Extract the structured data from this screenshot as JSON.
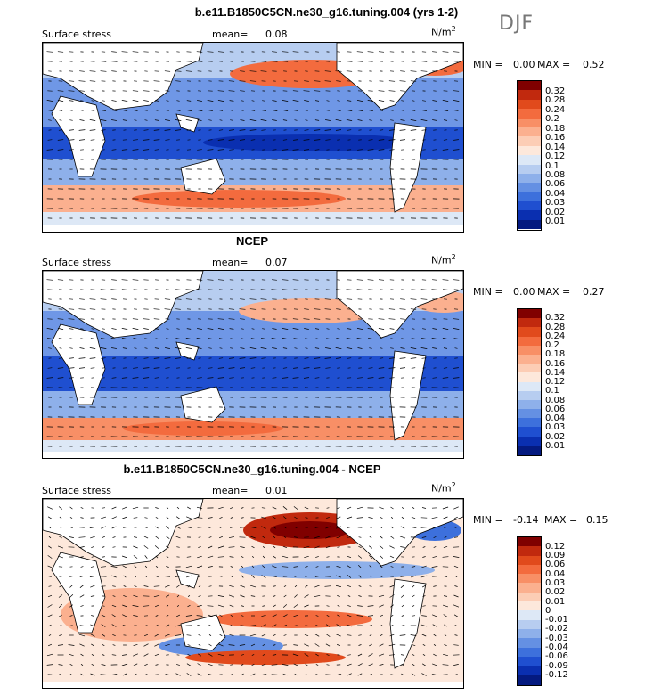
{
  "season_label": "DJF",
  "units": "N/m",
  "units_sup": "2",
  "panels": [
    {
      "title": "b.e11.B1850C5CN.ne30_g16.tuning.004 (yrs 1-2)",
      "variable": "Surface stress",
      "mean_label": "mean=",
      "mean_value": "0.08",
      "min_label": "MIN =",
      "min_value": "0.00",
      "max_label": "MAX =",
      "max_value": "0.52",
      "levels": [
        "0.32",
        "0.28",
        "0.24",
        "0.2",
        "0.18",
        "0.16",
        "0.14",
        "0.12",
        "0.1",
        "0.08",
        "0.06",
        "0.04",
        "0.03",
        "0.02",
        "0.01"
      ],
      "colors": [
        "#800000",
        "#c1290e",
        "#e14a1c",
        "#f36b3e",
        "#f88f66",
        "#fbb08f",
        "#fccdb5",
        "#fde8db",
        "#dde8f6",
        "#b7cdf0",
        "#8eb0ea",
        "#6490e3",
        "#3d70dc",
        "#1f4fd0",
        "#0a2fb0",
        "#041a80"
      ]
    },
    {
      "title": "NCEP",
      "variable": "Surface stress",
      "mean_label": "mean=",
      "mean_value": "0.07",
      "min_label": "MIN =",
      "min_value": "0.00",
      "max_label": "MAX =",
      "max_value": "0.27",
      "levels": [
        "0.32",
        "0.28",
        "0.24",
        "0.2",
        "0.18",
        "0.16",
        "0.14",
        "0.12",
        "0.1",
        "0.08",
        "0.06",
        "0.04",
        "0.03",
        "0.02",
        "0.01"
      ],
      "colors": [
        "#800000",
        "#c1290e",
        "#e14a1c",
        "#f36b3e",
        "#f88f66",
        "#fbb08f",
        "#fccdb5",
        "#fde8db",
        "#dde8f6",
        "#b7cdf0",
        "#8eb0ea",
        "#6490e3",
        "#3d70dc",
        "#1f4fd0",
        "#0a2fb0",
        "#041a80"
      ]
    },
    {
      "title": "b.e11.B1850C5CN.ne30_g16.tuning.004 - NCEP",
      "variable": "Surface stress",
      "mean_label": "mean=",
      "mean_value": "0.01",
      "min_label": "MIN =",
      "min_value": "-0.14",
      "max_label": "MAX =",
      "max_value": "0.15",
      "levels": [
        "0.12",
        "0.09",
        "0.06",
        "0.04",
        "0.03",
        "0.02",
        "0.01",
        "0",
        "-0.01",
        "-0.02",
        "-0.03",
        "-0.04",
        "-0.06",
        "-0.09",
        "-0.12"
      ],
      "colors": [
        "#800000",
        "#c1290e",
        "#e14a1c",
        "#f36b3e",
        "#f88f66",
        "#fbb08f",
        "#fccdb5",
        "#fde8db",
        "#dde8f6",
        "#b7cdf0",
        "#8eb0ea",
        "#6490e3",
        "#3d70dc",
        "#1f4fd0",
        "#0a2fb0",
        "#041a80"
      ]
    }
  ]
}
